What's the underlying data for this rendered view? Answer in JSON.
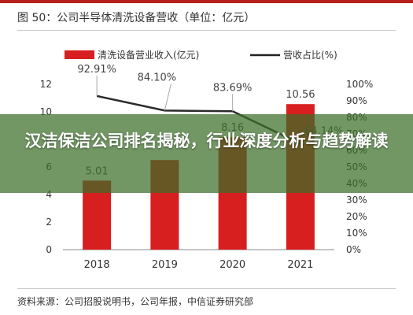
{
  "header": {
    "title": "图 50：公司半导体清洗设备营收（单位：亿元）"
  },
  "footer": {
    "source": "资料来源：公司招股说明书，公司年报，中信证券研究部"
  },
  "overlay": {
    "headline": "汉洁保洁公司排名揭秘，行业深度分析与趋势解读"
  },
  "chart_data": {
    "type": "bar",
    "categories": [
      "2018",
      "2019",
      "2020",
      "2021"
    ],
    "series": [
      {
        "name": "清洗设备营业收入(亿元)",
        "type": "bar",
        "axis": "left",
        "color": "#d71f1f",
        "values": [
          5.01,
          6.5,
          8.16,
          10.56
        ],
        "labels": [
          "5.01",
          "",
          "8.16",
          "10.56"
        ]
      },
      {
        "name": "营收占比(%)",
        "type": "line",
        "axis": "right",
        "color": "#2b2b2b",
        "values": [
          92.91,
          84.1,
          83.69,
          64.14
        ],
        "labels": [
          "92.91%",
          "84.10%",
          "83.69%",
          "64.14%"
        ]
      }
    ],
    "left_axis": {
      "ylim": [
        0,
        12
      ],
      "ticks": [
        "0",
        "2",
        "4",
        "6",
        "8",
        "10",
        "12"
      ]
    },
    "right_axis": {
      "ylim": [
        0,
        100
      ],
      "ticks": [
        "0%",
        "10%",
        "20%",
        "30%",
        "40%",
        "50%",
        "60%",
        "70%",
        "80%",
        "90%",
        "100%"
      ]
    },
    "legend_position": "top-center",
    "grid": false
  }
}
